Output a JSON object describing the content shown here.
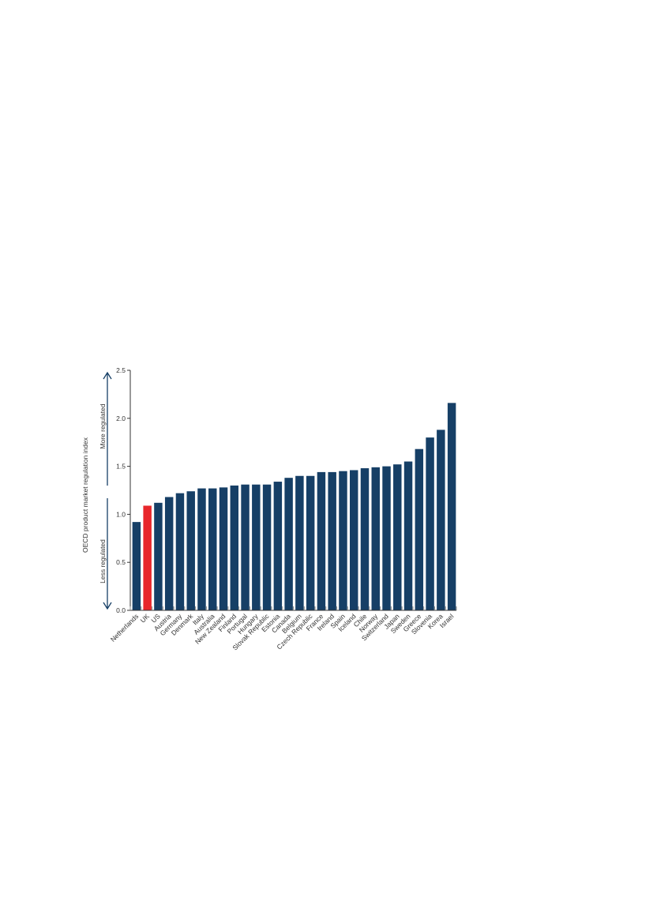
{
  "chart_data": {
    "type": "bar",
    "ylabel": "OECD product market regulation index",
    "annotations": {
      "more": "More regulated",
      "less": "Less regulated"
    },
    "ylim": [
      0,
      2.5
    ],
    "yticks": [
      "0.0",
      "0.5",
      "1.0",
      "1.5",
      "2.0",
      "2.5"
    ],
    "grid": false,
    "categories": [
      "Netherlands",
      "UK",
      "US",
      "Austria",
      "Germany",
      "Denmark",
      "Italy",
      "Australia",
      "New Zealand",
      "Finland",
      "Portugal",
      "Hungary",
      "Slovak Republic",
      "Estonia",
      "Canada",
      "Belgium",
      "Czech Republic",
      "France",
      "Ireland",
      "Spain",
      "Iceland",
      "Chile",
      "Norway",
      "Switzerland",
      "Japan",
      "Sweden",
      "Greece",
      "Slovenia",
      "Korea",
      "Israel"
    ],
    "values": [
      0.92,
      1.09,
      1.12,
      1.18,
      1.22,
      1.24,
      1.27,
      1.27,
      1.28,
      1.3,
      1.31,
      1.31,
      1.31,
      1.34,
      1.38,
      1.4,
      1.4,
      1.44,
      1.44,
      1.45,
      1.46,
      1.48,
      1.49,
      1.5,
      1.52,
      1.55,
      1.68,
      1.8,
      1.88,
      2.16
    ],
    "highlight": "UK",
    "colors": {
      "bar": "#163f66",
      "highlight": "#e8262b",
      "arrow": "#163f66",
      "axis": "#333333"
    }
  }
}
